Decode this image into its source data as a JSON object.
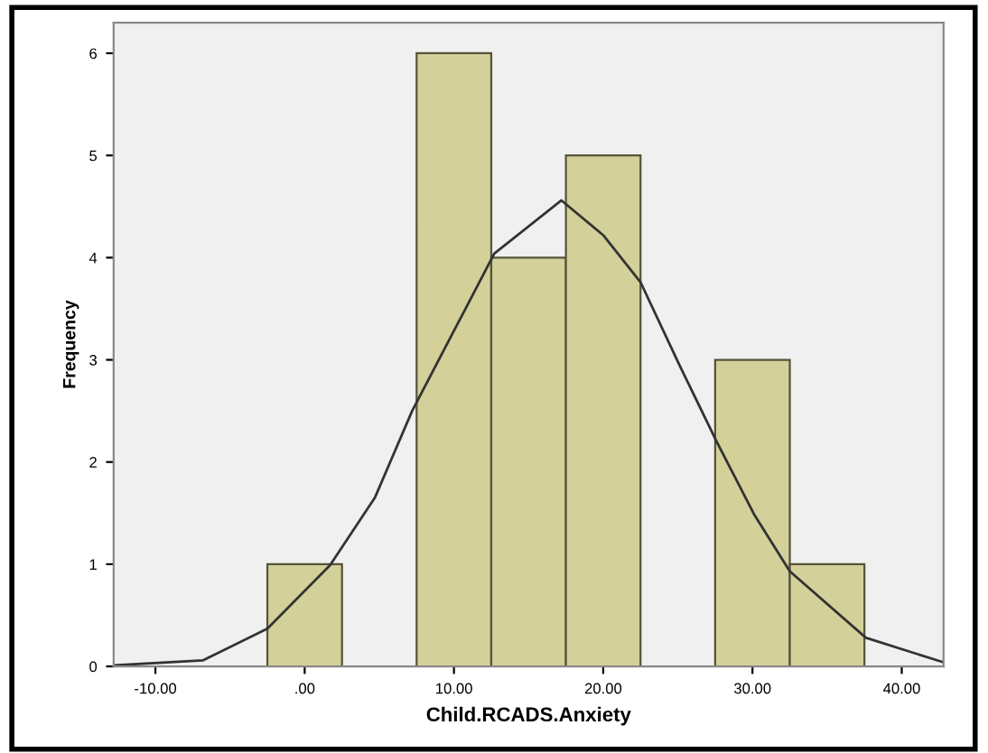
{
  "chart_data": {
    "type": "histogram",
    "xlabel": "Child.RCADS.Anxiety",
    "ylabel": "Frequency",
    "bins": [
      -2.5,
      2.5,
      7.5,
      12.5,
      17.5,
      22.5,
      27.5,
      32.5,
      37.5
    ],
    "values": [
      1,
      0,
      6,
      4,
      5,
      0,
      3,
      1
    ],
    "color": "#d4d09a",
    "series": [
      {
        "type": "line",
        "color": "#333333",
        "x": [
          -12.8,
          -6.8,
          -2.5,
          1.7,
          4.7,
          7.2,
          12.7,
          17.2,
          20,
          22.5,
          25.1,
          27.6,
          30.1,
          32.5,
          37.6,
          42.8
        ],
        "values": [
          0.01,
          0.06,
          0.37,
          0.99,
          1.65,
          2.5,
          4.04,
          4.56,
          4.22,
          3.76,
          2.95,
          2.2,
          1.49,
          0.93,
          0.28,
          0.04
        ]
      }
    ],
    "xlim": [
      -12.8,
      42.8
    ],
    "ylim": [
      0,
      6.3
    ],
    "xticks": [
      {
        "value": -10,
        "label": "-10.00"
      },
      {
        "value": 0,
        "label": ".00"
      },
      {
        "value": 10,
        "label": "10.00"
      },
      {
        "value": 20,
        "label": "20.00"
      },
      {
        "value": 30,
        "label": "30.00"
      },
      {
        "value": 40,
        "label": "40.00"
      }
    ],
    "yticks": [
      0,
      1,
      2,
      3,
      4,
      5,
      6
    ],
    "grid": false
  }
}
